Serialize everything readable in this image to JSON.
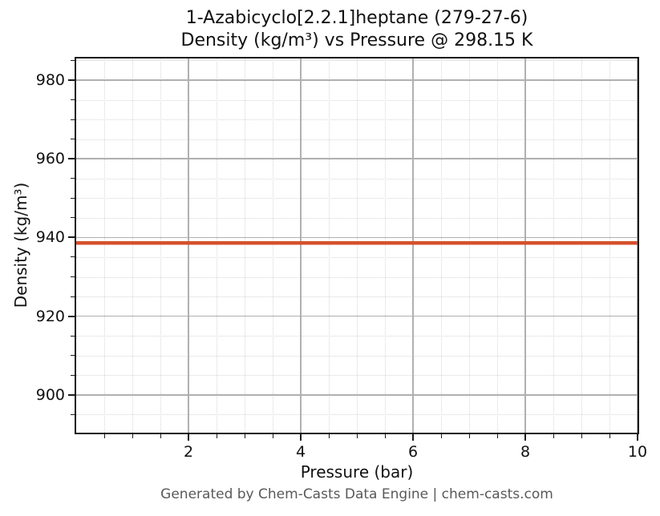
{
  "title": {
    "line1": "1-Azabicyclo[2.2.1]heptane (279-27-6)",
    "line2": "Density (kg/m³) vs Pressure @ 298.15 K"
  },
  "footer": "Generated by Chem-Casts Data Engine | chem-casts.com",
  "colors": {
    "line": "#d4512b",
    "grid_major": "#b0b0b0",
    "grid_minor": "#d6d6d6",
    "spine": "#1a1a1a",
    "text": "#111111",
    "footer_text": "#595959",
    "background": "#ffffff"
  },
  "chart_data": {
    "type": "line",
    "title": "1-Azabicyclo[2.2.1]heptane (279-27-6)",
    "subtitle": "Density (kg/m³) vs Pressure @ 298.15 K",
    "xlabel": "Pressure (bar)",
    "ylabel": "Density (kg/m³)",
    "xlim": [
      0,
      10
    ],
    "ylim": [
      890.4,
      985.5
    ],
    "x_major_ticks": [
      2,
      4,
      6,
      8,
      10
    ],
    "x_minor_step": 0.5,
    "y_major_ticks": [
      900,
      920,
      940,
      960,
      980
    ],
    "y_minor_step": 5,
    "grid": {
      "major": "solid",
      "minor": "dotted"
    },
    "legend": "none",
    "series": [
      {
        "name": "Density",
        "color": "#d4512b",
        "x": [
          0,
          1,
          2,
          3,
          4,
          5,
          6,
          7,
          8,
          9,
          10
        ],
        "y": [
          938.6,
          938.6,
          938.6,
          938.6,
          938.6,
          938.6,
          938.6,
          938.6,
          938.6,
          938.6,
          938.6
        ]
      }
    ]
  }
}
